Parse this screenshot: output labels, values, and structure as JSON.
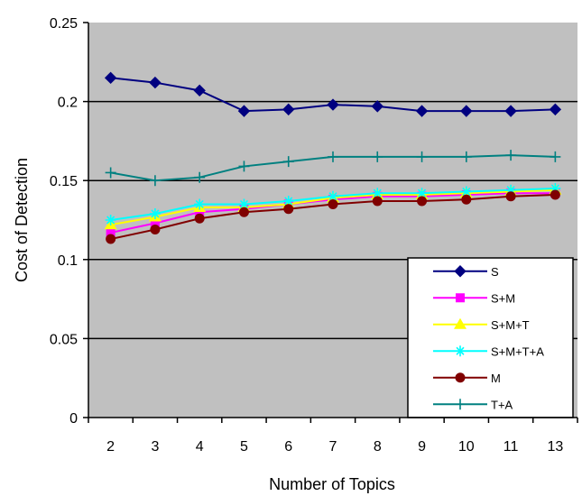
{
  "chart_data": {
    "type": "line",
    "xlabel": "Number of Topics",
    "ylabel": "Cost of Detection",
    "categories": [
      "2",
      "3",
      "4",
      "5",
      "6",
      "7",
      "8",
      "9",
      "10",
      "11",
      "13"
    ],
    "ylim": [
      0,
      0.25
    ],
    "yticks": [
      "0",
      "0.05",
      "0.1",
      "0.15",
      "0.2",
      "0.25"
    ],
    "grid": "horizontal major gridlines",
    "plot_background": "#c0c0c0",
    "legend_position": "bottom-right inside plot",
    "series": [
      {
        "name": "S",
        "color": "#000080",
        "marker": "diamond",
        "values": [
          0.215,
          0.212,
          0.207,
          0.194,
          0.195,
          0.198,
          0.197,
          0.194,
          0.194,
          0.194,
          0.195
        ]
      },
      {
        "name": "S+M",
        "color": "#ff00ff",
        "marker": "square",
        "values": [
          0.117,
          0.123,
          0.13,
          0.132,
          0.135,
          0.138,
          0.14,
          0.14,
          0.141,
          0.142,
          0.142
        ]
      },
      {
        "name": "S+M+T",
        "color": "#ffff00",
        "marker": "triangle",
        "values": [
          0.122,
          0.127,
          0.133,
          0.133,
          0.135,
          0.139,
          0.141,
          0.141,
          0.142,
          0.143,
          0.144
        ]
      },
      {
        "name": "S+M+T+A",
        "color": "#00ffff",
        "marker": "cross",
        "values": [
          0.125,
          0.129,
          0.135,
          0.135,
          0.137,
          0.14,
          0.142,
          0.142,
          0.143,
          0.144,
          0.145
        ]
      },
      {
        "name": "M",
        "color": "#800000",
        "marker": "circle",
        "values": [
          0.113,
          0.119,
          0.126,
          0.13,
          0.132,
          0.135,
          0.137,
          0.137,
          0.138,
          0.14,
          0.141
        ]
      },
      {
        "name": "T+A",
        "color": "#008080",
        "marker": "plus",
        "values": [
          0.155,
          0.15,
          0.152,
          0.159,
          0.162,
          0.165,
          0.165,
          0.165,
          0.165,
          0.166,
          0.165
        ]
      }
    ]
  }
}
